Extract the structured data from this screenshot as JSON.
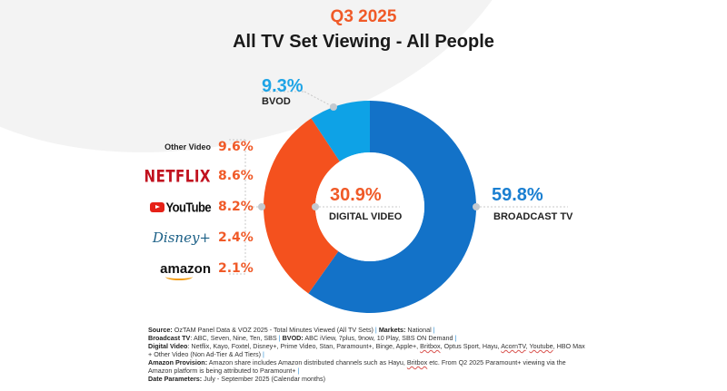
{
  "header": {
    "period": "Q3 2025",
    "title": "All TV Set Viewing - All People"
  },
  "colors": {
    "broadcast_tv": "#1372c8",
    "digital_video": "#f4511e",
    "bvod": "#0ea2e6",
    "accent_orange": "#f05a28",
    "accent_blue": "#1a7fd1",
    "bvod_blue": "#1ea4e6"
  },
  "chart_data": {
    "type": "pie",
    "variant": "donut",
    "title": "All TV Set Viewing - All People",
    "subtitle": "Q3 2025",
    "slices": [
      {
        "label": "BROADCAST TV",
        "value": 59.8,
        "display": "59.8%"
      },
      {
        "label": "DIGITAL VIDEO",
        "value": 30.9,
        "display": "30.9%"
      },
      {
        "label": "BVOD",
        "value": 9.3,
        "display": "9.3%"
      }
    ],
    "center_label": {
      "value": "30.9%",
      "label": "DIGITAL VIDEO"
    },
    "digital_video_breakdown": [
      {
        "label": "Other Video",
        "value": 9.6,
        "display": "9.6%"
      },
      {
        "label": "NETFLIX",
        "value": 8.6,
        "display": "8.6%"
      },
      {
        "label": "YouTube",
        "value": 8.2,
        "display": "8.2%"
      },
      {
        "label": "Disney+",
        "value": 2.4,
        "display": "2.4%"
      },
      {
        "label": "amazon",
        "value": 2.1,
        "display": "2.1%"
      }
    ]
  },
  "footnote": {
    "source_label": "Source:",
    "source_text": " OzTAM Panel Data & VOZ 2025 - Total Minutes Viewed (All TV Sets)",
    "markets_label": "Markets:",
    "markets_text": " National",
    "broadcast_label": "Broadcast TV",
    "broadcast_text": ": ABC, Seven, Nine, Ten, SBS",
    "bvod_label": "BVOD:",
    "bvod_text": " ABC iView, 7plus, 9now, 10 Play, SBS ON Demand",
    "digital_label": "Digital Video",
    "digital_text_1": ": Netflix, Kayo, Foxtel, Disney+, Prime Video, Stan, Paramount+, Binge, Apple+, ",
    "digital_britbox": "Britbox",
    "digital_text_2": ", Optus Sport, Hayu, ",
    "digital_acorn": "AcornTV",
    "digital_text_3": ", ",
    "digital_youtube": "Youtube",
    "digital_text_4": ", HBO Max",
    "digital_text_5": "+ Other Video (Non Ad-Tier & Ad Tiers)",
    "amazon_label": "Amazon Provision:",
    "amazon_text_1": " Amazon share includes Amazon distributed channels such as Hayu, ",
    "amazon_britbox": "Britbox",
    "amazon_text_2": " etc. From Q2 2025 Paramount+ viewing via the",
    "amazon_text_3": "Amazon platform is being attributed to Paramount+",
    "date_label": "Date Parameters:",
    "date_text": " July - September 2025 (Calendar months)",
    "pipe": " |"
  }
}
